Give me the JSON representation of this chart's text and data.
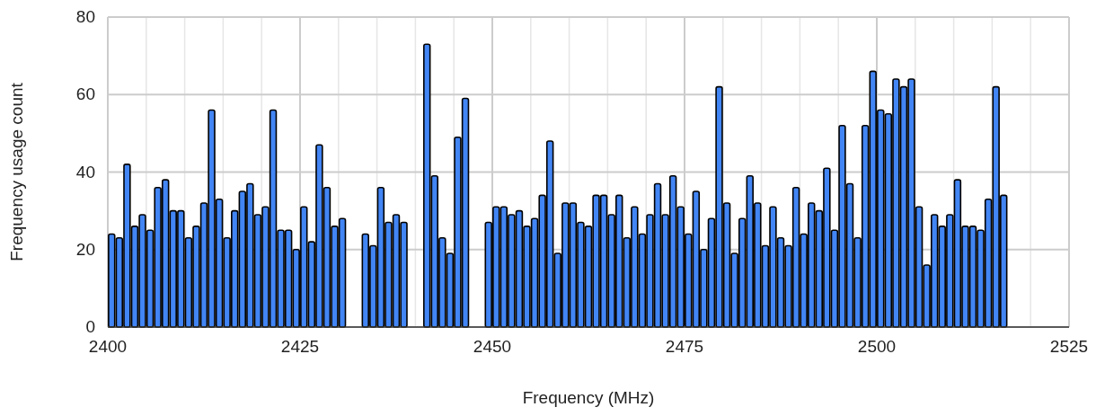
{
  "chart_data": {
    "type": "histogram",
    "xlabel": "Frequency (MHz)",
    "ylabel": "Frequency usage count",
    "color": "#4285f4",
    "bins": [
      2400,
      2401,
      2402,
      2403,
      2404,
      2405,
      2406,
      2407,
      2408,
      2409,
      2410,
      2411,
      2412,
      2413,
      2414,
      2415,
      2416,
      2417,
      2418,
      2419,
      2420,
      2421,
      2422,
      2423,
      2424,
      2425,
      2426,
      2427,
      2428,
      2429,
      2430,
      2431,
      2432,
      2433,
      2434,
      2435,
      2436,
      2437,
      2438,
      2439,
      2440,
      2441,
      2442,
      2443,
      2444,
      2445,
      2446,
      2447,
      2448,
      2449,
      2450,
      2451,
      2452,
      2453,
      2454,
      2455,
      2456,
      2457,
      2458,
      2459,
      2460,
      2461,
      2462,
      2463,
      2464,
      2465,
      2466,
      2467,
      2468,
      2469,
      2470,
      2471,
      2472,
      2473,
      2474,
      2475,
      2476,
      2477,
      2478,
      2479,
      2480,
      2481,
      2482,
      2483,
      2484,
      2485,
      2486,
      2487,
      2488,
      2489,
      2490,
      2491,
      2492,
      2493,
      2494,
      2495,
      2496,
      2497,
      2498,
      2499,
      2500,
      2501,
      2502,
      2503,
      2504,
      2505,
      2506,
      2507,
      2508,
      2509,
      2510,
      2511,
      2512,
      2513,
      2514,
      2515,
      2516,
      2517
    ],
    "values": [
      24,
      23,
      42,
      26,
      29,
      25,
      36,
      38,
      30,
      30,
      23,
      26,
      32,
      56,
      33,
      23,
      30,
      35,
      37,
      29,
      31,
      56,
      25,
      25,
      20,
      31,
      22,
      47,
      36,
      26,
      28,
      0,
      0,
      24,
      21,
      36,
      27,
      29,
      27,
      0,
      0,
      73,
      39,
      23,
      19,
      49,
      59,
      0,
      0,
      27,
      31,
      31,
      29,
      30,
      26,
      28,
      34,
      48,
      19,
      32,
      32,
      27,
      26,
      34,
      34,
      29,
      34,
      23,
      31,
      24,
      29,
      37,
      29,
      39,
      31,
      24,
      35,
      20,
      28,
      62,
      32,
      19,
      28,
      39,
      32,
      21,
      31,
      23,
      21,
      36,
      24,
      32,
      30,
      41,
      25,
      52,
      37,
      23,
      52,
      66,
      56,
      55,
      64,
      62,
      64,
      31,
      16,
      29,
      26,
      29,
      38,
      26,
      26,
      25,
      33,
      62,
      34
    ],
    "xlim": [
      2400,
      2525
    ],
    "xticks": [
      2400,
      {
        "value": 2405,
        "label": null
      },
      {
        "value": 2410,
        "label": null
      },
      {
        "value": 2415,
        "label": null
      },
      {
        "value": 2420,
        "label": null
      },
      2425,
      {
        "value": 2430,
        "label": null
      },
      {
        "value": 2435,
        "label": null
      },
      {
        "value": 2440,
        "label": null
      },
      {
        "value": 2445,
        "label": null
      },
      2450,
      {
        "value": 2455,
        "label": null
      },
      {
        "value": 2460,
        "label": null
      },
      {
        "value": 2465,
        "label": null
      },
      {
        "value": 2470,
        "label": null
      },
      2475,
      {
        "value": 2480,
        "label": null
      },
      {
        "value": 2485,
        "label": null
      },
      {
        "value": 2490,
        "label": null
      },
      {
        "value": 2495,
        "label": null
      },
      2500,
      {
        "value": 2505,
        "label": null
      },
      {
        "value": 2510,
        "label": null
      },
      {
        "value": 2515,
        "label": null
      },
      {
        "value": 2520,
        "label": null
      },
      2525
    ],
    "ylim": [
      0,
      80
    ],
    "yticks": [
      0,
      20,
      40,
      60,
      80
    ],
    "grid": true
  }
}
